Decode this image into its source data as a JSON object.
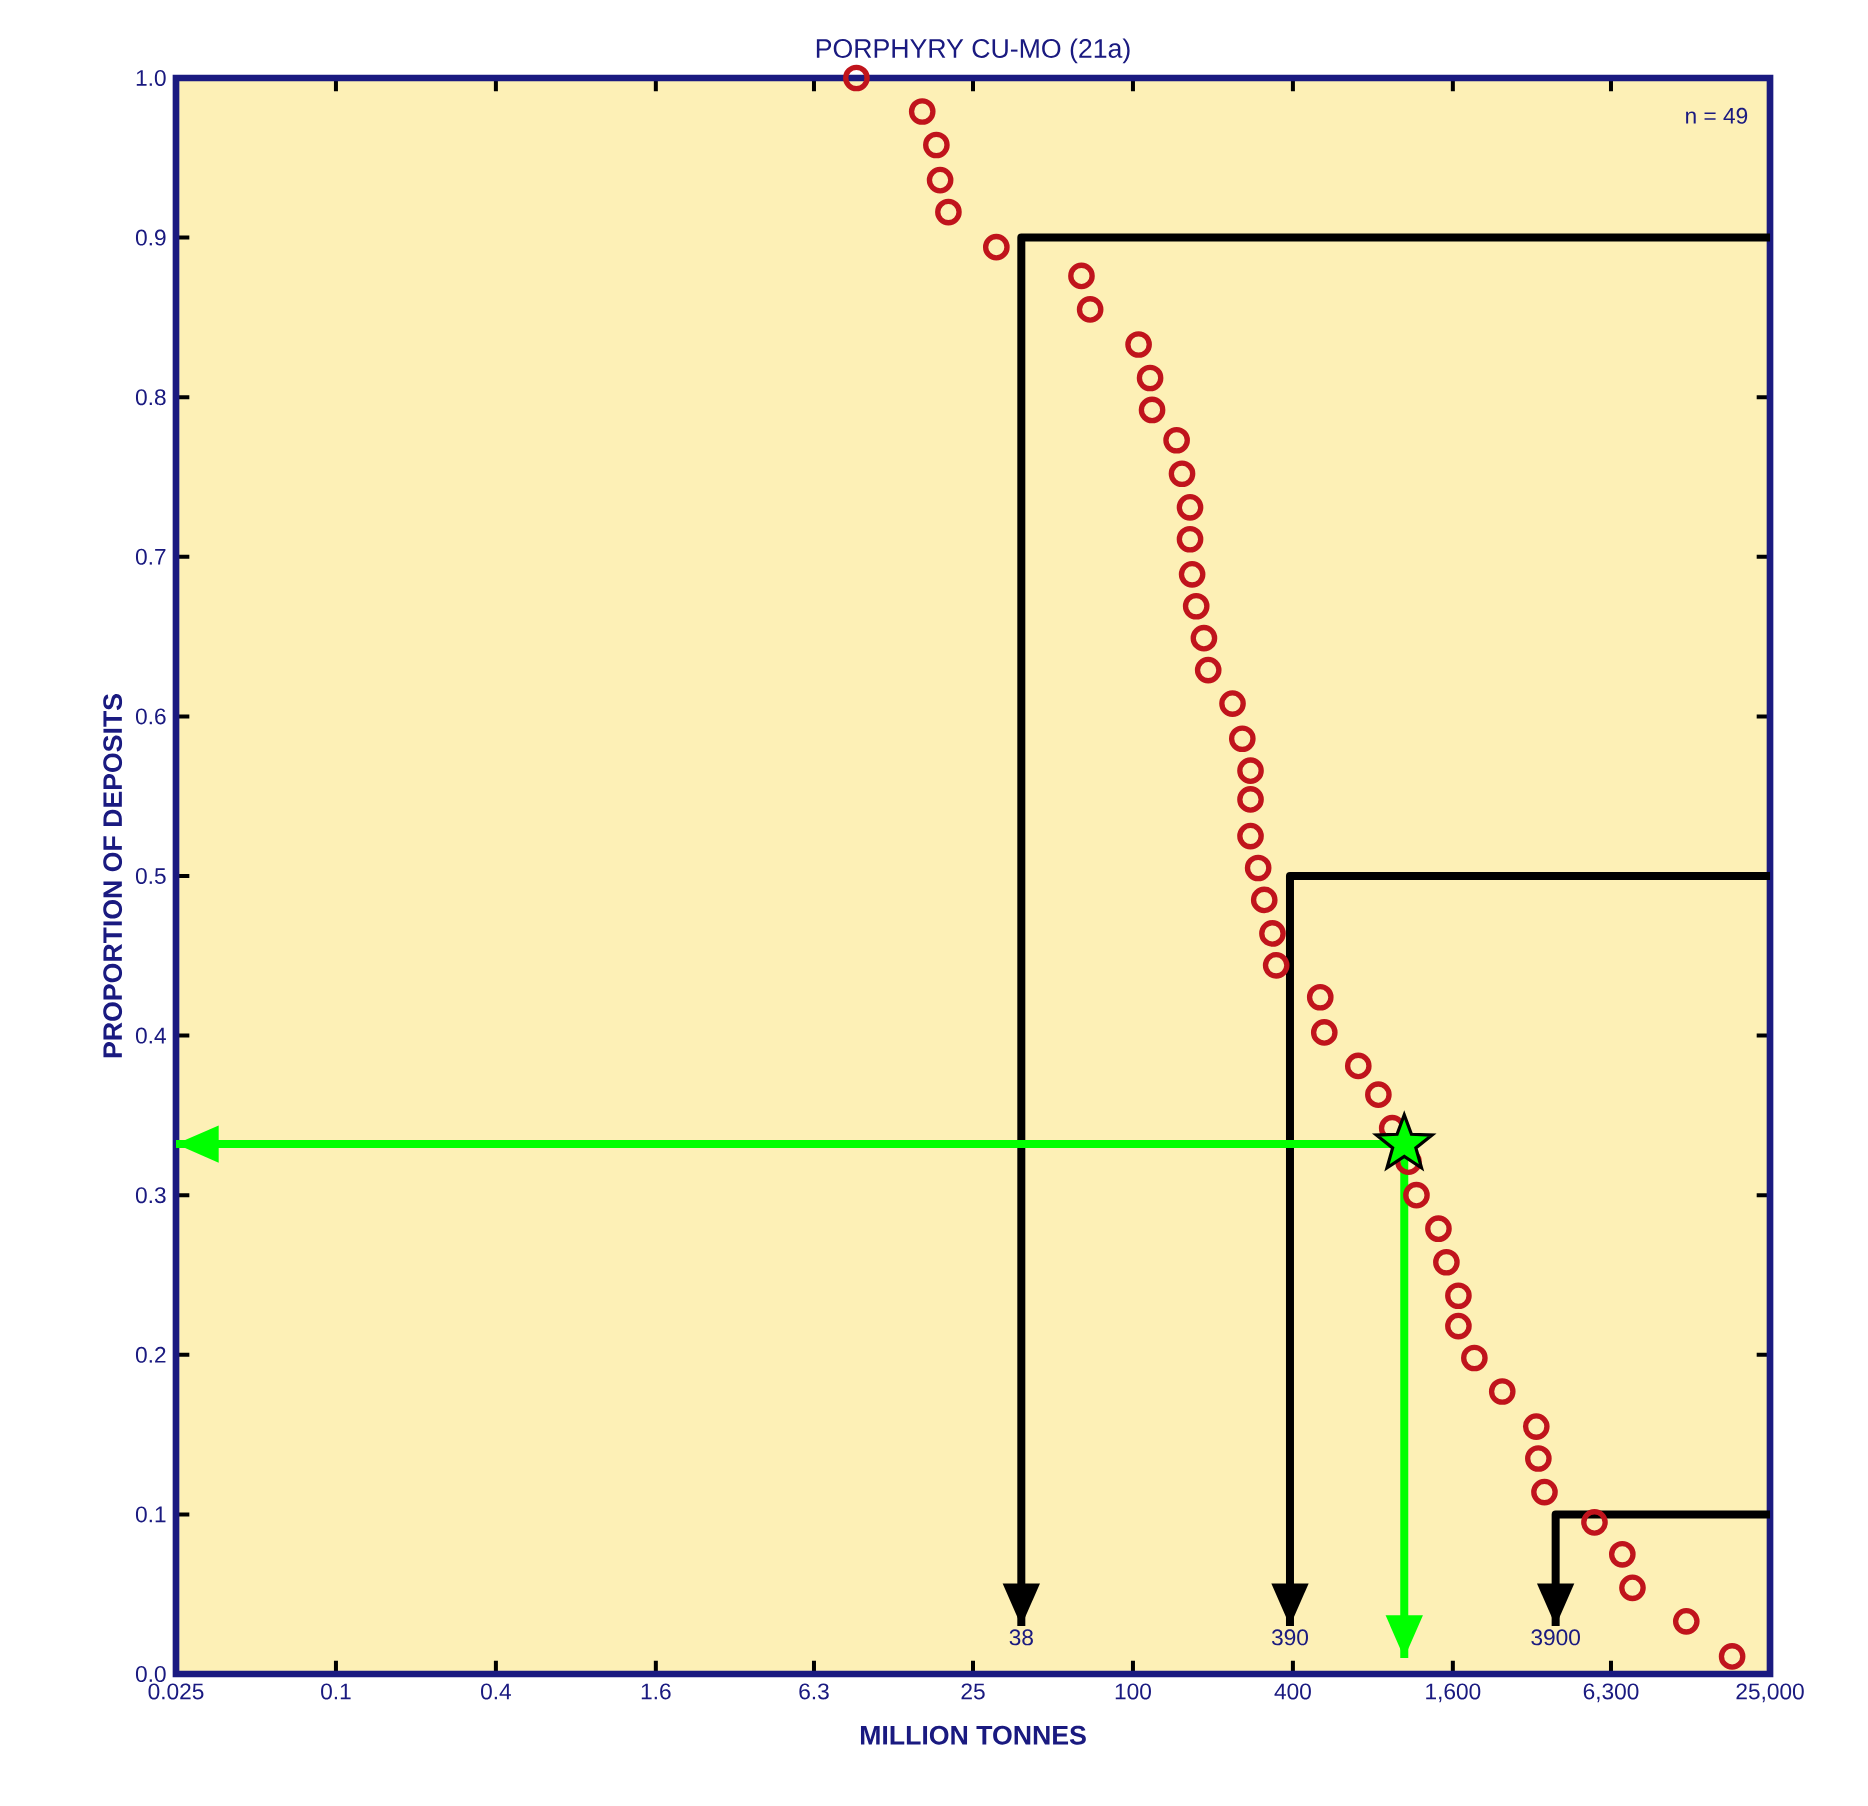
{
  "chart_data": {
    "type": "scatter",
    "title": "PORPHYRY CU-MO (21a)",
    "xlabel": "MILLION TONNES",
    "ylabel": "PROPORTION OF DEPOSITS",
    "log": "x",
    "xlim": [
      0.025,
      25000
    ],
    "ylim": [
      0,
      1
    ],
    "xticks": [
      0.025,
      0.1,
      0.4,
      1.6,
      6.3,
      25,
      100,
      400,
      {
        "value": 1600,
        "label": "1,600"
      },
      {
        "value": 6300,
        "label": "6,300"
      },
      {
        "value": 25000,
        "label": "25,000"
      }
    ],
    "yticks": [
      {
        "value": 0,
        "label": "0.0"
      },
      0.1,
      0.2,
      0.3,
      0.4,
      0.5,
      0.6,
      0.7,
      0.8,
      0.9,
      {
        "value": 1,
        "label": "1.0"
      }
    ],
    "grid": false,
    "annotations": [
      "n =   49",
      {
        "text": "38",
        "x": 38,
        "y": 0.03
      },
      {
        "text": "390",
        "x": 390,
        "y": 0.03
      },
      {
        "text": "3900",
        "x": 3900,
        "y": 0.03
      }
    ],
    "series": [
      {
        "marker": "circle",
        "color": "#c0141c",
        "x": [
          9.1,
          16.1,
          18.2,
          18.8,
          20.2,
          30.6,
          64,
          69,
          105,
          116,
          118,
          146,
          153,
          164,
          164,
          167,
          173,
          185,
          192,
          237,
          258,
          277,
          277,
          277,
          296,
          312,
          335,
          346,
          507,
          525,
          705,
          839,
          946,
          1089,
          1167,
          1412,
          1513,
          1679,
          1679,
          1928,
          2455,
          3297,
          3357,
          3540,
          5460,
          6950,
          7590,
          12100,
          18000
        ],
        "values": [
          1.0,
          0.979,
          0.958,
          0.936,
          0.916,
          0.894,
          0.876,
          0.855,
          0.833,
          0.812,
          0.792,
          0.773,
          0.752,
          0.731,
          0.711,
          0.689,
          0.669,
          0.649,
          0.629,
          0.608,
          0.586,
          0.566,
          0.548,
          0.525,
          0.505,
          0.485,
          0.464,
          0.444,
          0.424,
          0.402,
          0.381,
          0.363,
          0.342,
          0.321,
          0.3,
          0.279,
          0.258,
          0.237,
          0.218,
          0.198,
          0.177,
          0.155,
          0.135,
          0.114,
          0.095,
          0.075,
          0.054,
          0.033,
          0.011
        ]
      },
      {
        "type": "line",
        "color": "#000000",
        "x": [
          25000,
          38,
          38
        ],
        "values": [
          0.9,
          0.9,
          0.03
        ]
      },
      {
        "type": "line",
        "color": "#000000",
        "x": [
          25000,
          390,
          390
        ],
        "values": [
          0.5,
          0.5,
          0.03
        ]
      },
      {
        "type": "line",
        "color": "#000000",
        "x": [
          25000,
          3900,
          3900
        ],
        "values": [
          0.1,
          0.1,
          0.03
        ]
      },
      {
        "type": "line",
        "color": "#00ff00",
        "x": [
          1050,
          0.025
        ],
        "values": [
          0.332,
          0.332
        ]
      },
      {
        "type": "line",
        "color": "#00ff00",
        "x": [
          1050,
          1050
        ],
        "values": [
          0.332,
          0.01
        ]
      },
      {
        "type": "scatter",
        "color": "#00ff00",
        "marker": "star",
        "x": [
          1050
        ],
        "values": [
          0.332
        ]
      }
    ]
  }
}
